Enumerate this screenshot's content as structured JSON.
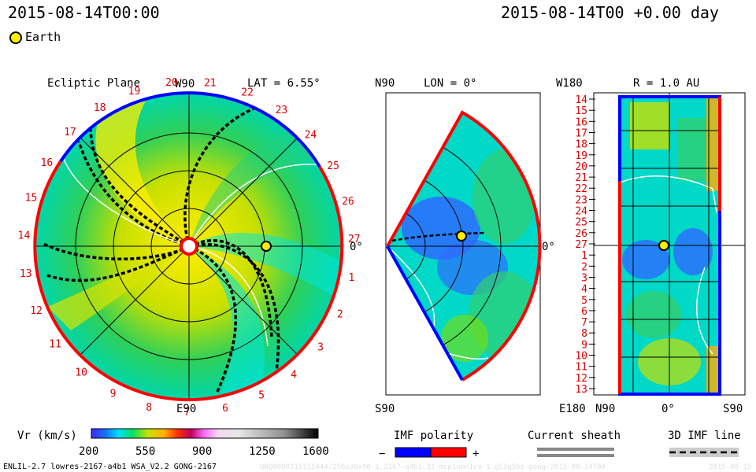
{
  "header": {
    "left_time": "2015-08-14T00:00",
    "right_time": "2015-08-14T00 +0.00 day",
    "earth_legend": "Earth"
  },
  "colors": {
    "earth": "#ffee00",
    "positive_polarity": "#ff0000",
    "negative_polarity": "#0000ff",
    "tick_red": "#dd0000"
  },
  "chart_data": [
    {
      "type": "heatmap",
      "panel": "ecliptic",
      "title": "Ecliptic Plane",
      "subtitle": "LAT = 6.55°",
      "top_label": "W90",
      "bottom_label": "E90",
      "right_label": "0°",
      "rotation_labels": [
        "20",
        "21",
        "22",
        "23",
        "24",
        "25",
        "26",
        "27",
        "1",
        "2",
        "3",
        "4",
        "5",
        "6",
        "7",
        "8",
        "9",
        "10",
        "11",
        "12",
        "13",
        "14",
        "15",
        "16",
        "17",
        "18",
        "19"
      ],
      "earth_longitude_deg": 0,
      "earth_radius_au": 1.0
    },
    {
      "type": "heatmap",
      "panel": "meridional",
      "title": "LON = 0°",
      "top_label": "N90",
      "bottom_label": "S90",
      "right_label": "0°"
    },
    {
      "type": "heatmap",
      "panel": "radial",
      "title": "R = 1.0 AU",
      "top_label": "W180",
      "bottom_label": "E180",
      "x_tick_labels": [
        "N90",
        "0°",
        "S90"
      ],
      "y_tick_labels": [
        "14",
        "15",
        "16",
        "17",
        "18",
        "19",
        "20",
        "21",
        "22",
        "23",
        "24",
        "25",
        "26",
        "27",
        "1",
        "2",
        "3",
        "4",
        "5",
        "6",
        "7",
        "8",
        "9",
        "10",
        "11",
        "12",
        "13"
      ]
    }
  ],
  "colorbar": {
    "label": "Vr (km/s)",
    "ticks": [
      "200",
      "550",
      "900",
      "1250",
      "1600"
    ],
    "min": 200,
    "max": 1600
  },
  "legends": {
    "polarity_title": "IMF polarity",
    "minus": "−",
    "plus": "+",
    "current_sheath": "Current sheath",
    "imf_line": "3D IMF line"
  },
  "footer": {
    "model_info": "ENLIL-2.7 lowres-2167-a4b1 WSA_V2.2 GONG-2167",
    "run_id": "UNQ0000315155444/256x30x90-1.2167-a4b1.32-mcp1umn1ca-1.g53q5bz-gong-2015-08-14T00",
    "run_date": "2015-08-15"
  }
}
